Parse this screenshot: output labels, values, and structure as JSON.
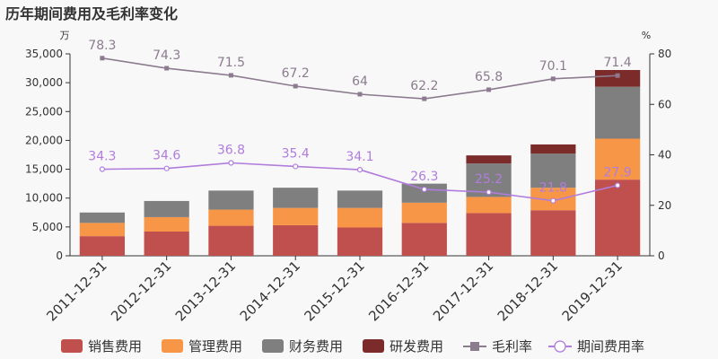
{
  "chart_data": {
    "type": "bar",
    "title": "历年期间费用及毛利率变化",
    "left_unit": "万",
    "right_unit": "%",
    "categories": [
      "2011-12-31",
      "2012-12-31",
      "2013-12-31",
      "2014-12-31",
      "2015-12-31",
      "2016-12-31",
      "2017-12-31",
      "2018-12-31",
      "2019-12-31"
    ],
    "ylim_left": [
      0,
      35000
    ],
    "yticks_left": [
      "0",
      "5,000",
      "10,000",
      "15,000",
      "20,000",
      "25,000",
      "30,000",
      "35,000"
    ],
    "ylim_right": [
      0,
      80
    ],
    "yticks_right": [
      "0",
      "20",
      "40",
      "60",
      "80"
    ],
    "bar_series": [
      {
        "name": "销售费用",
        "color": "#c0504d",
        "values": [
          3400,
          4200,
          5200,
          5300,
          4900,
          5700,
          7400,
          7900,
          13200
        ]
      },
      {
        "name": "管理费用",
        "color": "#f79646",
        "values": [
          2300,
          2500,
          2800,
          3000,
          3400,
          3500,
          2800,
          3900,
          7100
        ]
      },
      {
        "name": "财务费用",
        "color": "#7f7f7f",
        "values": [
          1800,
          2800,
          3300,
          3500,
          3000,
          3300,
          5800,
          5900,
          9000
        ]
      },
      {
        "name": "研发费用",
        "color": "#7b2c2a",
        "values": [
          0,
          0,
          0,
          0,
          0,
          0,
          1400,
          1600,
          2900
        ]
      }
    ],
    "line_series": [
      {
        "name": "毛利率",
        "color": "#8c7b8f",
        "marker": "square",
        "values": [
          78.3,
          74.3,
          71.5,
          67.2,
          64,
          62.2,
          65.8,
          70.1,
          71.4
        ],
        "labels": [
          "78.3",
          "74.3",
          "71.5",
          "67.2",
          "64",
          "62.2",
          "65.8",
          "70.1",
          "71.4"
        ]
      },
      {
        "name": "期间费用率",
        "color": "#b07ddc",
        "marker": "circle",
        "values": [
          34.3,
          34.6,
          36.8,
          35.4,
          34.1,
          26.3,
          25.2,
          21.8,
          27.9
        ],
        "labels": [
          "34.3",
          "34.6",
          "36.8",
          "35.4",
          "34.1",
          "26.3",
          "25.2",
          "21.8",
          "27.9"
        ]
      }
    ],
    "legend_position": "bottom"
  }
}
